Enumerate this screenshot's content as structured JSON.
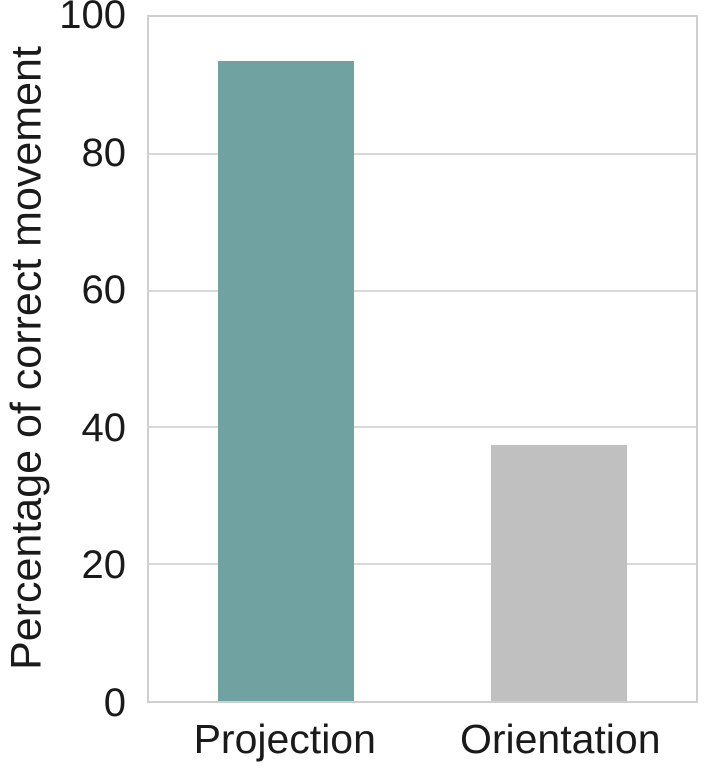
{
  "chart_data": {
    "type": "bar",
    "title": "",
    "xlabel": "",
    "ylabel": "Percentage of correct movement",
    "categories": [
      "Projection",
      "Orientation"
    ],
    "values": [
      93.5,
      37.4
    ],
    "ylim": [
      0,
      100
    ],
    "yticks": [
      0,
      20,
      40,
      60,
      80,
      100
    ],
    "grid": true,
    "legend": false,
    "bar_colors": [
      "#6fa2a0",
      "#c0c0c0"
    ]
  },
  "colors": {
    "background": "#ffffff",
    "gridline": "#d9d9d9",
    "axis_frame": "#cfcfcf",
    "text": "#1a1a1a",
    "bar_projection": "#6fa2a0",
    "bar_orientation": "#c0c0c0"
  }
}
